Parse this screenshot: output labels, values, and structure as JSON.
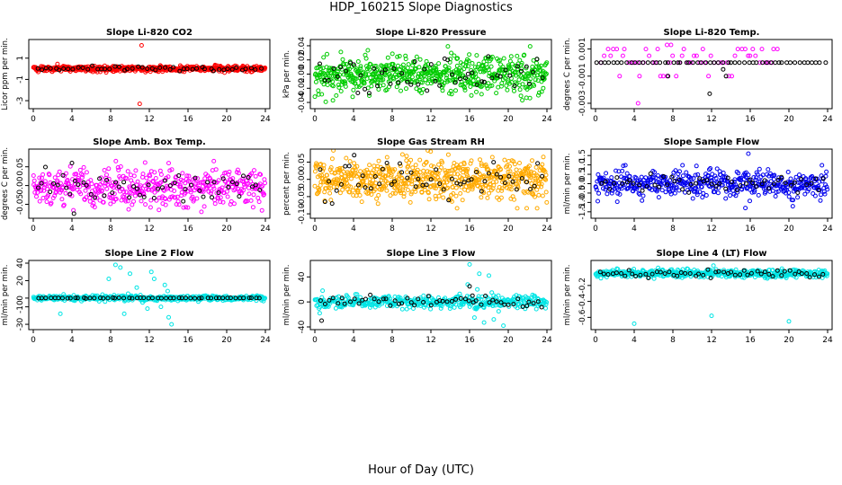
{
  "page": {
    "title": "HDP_160215  Slope Diagnostics",
    "xlabel": "Hour of Day (UTC)"
  },
  "chart_data": [
    {
      "type": "scatter",
      "title": "Slope Li-820 CO2",
      "ylabel": "Licor ppm per min.",
      "xlim": [
        0,
        24
      ],
      "ylim": [
        -3.5,
        2.5
      ],
      "xticks": [
        "0",
        "4",
        "8",
        "12",
        "16",
        "20",
        "24"
      ],
      "yticks": [
        {
          "v": 1,
          "label": "1"
        },
        {
          "v": -1,
          "label": "-1"
        },
        {
          "v": -3,
          "label": "-3"
        }
      ],
      "color": "#ff0000",
      "series": [
        {
          "color_name": "red",
          "color": "#ff0000",
          "count": 520,
          "center": 0,
          "spread": 0.13,
          "x_range": [
            0,
            24
          ],
          "outliers": [
            [
              11.2,
              2.2
            ],
            [
              11.0,
              -3.3
            ],
            [
              2.5,
              0.45
            ],
            [
              18.8,
              0.35
            ]
          ]
        },
        {
          "color_name": "black",
          "color": "#000000",
          "count": 50,
          "center": 0,
          "spread": 0.1,
          "x_range": [
            0.3,
            23.8
          ]
        }
      ]
    },
    {
      "type": "scatter",
      "title": "Slope Li-820 Pressure",
      "ylabel": "kPa per min.",
      "xlim": [
        0,
        24
      ],
      "ylim": [
        -0.045,
        0.045
      ],
      "xticks": [
        "0",
        "4",
        "8",
        "12",
        "16",
        "20",
        "24"
      ],
      "yticks": [
        {
          "v": 0.04,
          "label": "0.04"
        },
        {
          "v": 0.02,
          "label": "0.02"
        },
        {
          "v": 0.0,
          "label": "0.00"
        },
        {
          "v": -0.02,
          "label": "-0.02"
        },
        {
          "v": -0.04,
          "label": "-0.04"
        }
      ],
      "color": "#00cc00",
      "series": [
        {
          "color_name": "green",
          "color": "#00cc00",
          "count": 620,
          "center": 0.0,
          "spread": 0.014,
          "x_range": [
            0,
            24
          ]
        },
        {
          "color_name": "black",
          "color": "#000000",
          "count": 55,
          "center": 0.0,
          "spread": 0.013,
          "x_range": [
            0.5,
            23.8
          ]
        }
      ]
    },
    {
      "type": "scatter",
      "title": "Slope Li-820 Temp.",
      "ylabel": "degrees C per min.",
      "xlim": [
        0,
        24
      ],
      "ylim": [
        -0.0032,
        0.0015
      ],
      "xticks": [
        "0",
        "4",
        "8",
        "12",
        "16",
        "20",
        "24"
      ],
      "yticks": [
        {
          "v": 0.001,
          "label": "0.001"
        },
        {
          "v": -0.001,
          "label": "-0.001"
        },
        {
          "v": -0.003,
          "label": "-0.003"
        }
      ],
      "color": "#ff00ff",
      "series": [
        {
          "color_name": "magenta",
          "color": "#ff00ff",
          "count": 60,
          "center": 0.0,
          "spread": 0.0,
          "x_range": [
            0.5,
            19
          ],
          "levels": [
            0.001,
            0.0005,
            -0.001
          ],
          "outliers": [
            [
              4.4,
              -0.003
            ],
            [
              7.4,
              0.0013
            ],
            [
              7.8,
              0.0013
            ]
          ]
        },
        {
          "color_name": "black",
          "color": "#000000",
          "count": 55,
          "center": 0.0,
          "spread": 0.0,
          "x_range": [
            0,
            24
          ],
          "outliers": [
            [
              11.8,
              -0.0023
            ],
            [
              13.2,
              -0.0005
            ],
            [
              7.5,
              -0.001
            ],
            [
              13.5,
              -0.001
            ]
          ]
        }
      ]
    },
    {
      "type": "scatter",
      "title": "Slope Amb. Box Temp.",
      "ylabel": "degrees C per min.",
      "xlim": [
        0,
        24
      ],
      "ylim": [
        -0.08,
        0.09
      ],
      "xticks": [
        "0",
        "4",
        "8",
        "12",
        "16",
        "20",
        "24"
      ],
      "yticks": [
        {
          "v": 0.05,
          "label": "0.05"
        },
        {
          "v": 0.0,
          "label": "0.00"
        },
        {
          "v": -0.05,
          "label": "-0.05"
        }
      ],
      "color": "#ff00ff",
      "series": [
        {
          "color_name": "magenta",
          "color": "#ff00ff",
          "count": 470,
          "center": -0.005,
          "spread": 0.025,
          "x_range": [
            0,
            24
          ]
        },
        {
          "color_name": "black",
          "color": "#000000",
          "count": 55,
          "center": 0.0,
          "spread": 0.02,
          "x_range": [
            0.3,
            23.8
          ],
          "outliers": [
            [
              4.2,
              -0.075
            ],
            [
              4.0,
              0.06
            ]
          ]
        }
      ]
    },
    {
      "type": "scatter",
      "title": "Slope Gas Stream RH",
      "ylabel": "percent per min.",
      "xlim": [
        0,
        24
      ],
      "ylim": [
        -0.105,
        0.08
      ],
      "xticks": [
        "0",
        "4",
        "8",
        "12",
        "16",
        "20",
        "24"
      ],
      "yticks": [
        {
          "v": 0.05,
          "label": "0.05"
        },
        {
          "v": 0.0,
          "label": "0.00"
        },
        {
          "v": -0.05,
          "label": "-0.05"
        },
        {
          "v": -0.1,
          "label": "-0.10"
        }
      ],
      "color": "#ffaa00",
      "series": [
        {
          "color_name": "orange",
          "color": "#ffaa00",
          "count": 640,
          "center": 0.0,
          "spread": 0.03,
          "x_range": [
            0,
            24
          ]
        },
        {
          "color_name": "black",
          "color": "#000000",
          "count": 55,
          "center": 0.0,
          "spread": 0.025,
          "x_range": [
            0.5,
            23.8
          ]
        }
      ]
    },
    {
      "type": "scatter",
      "title": "Slope Sample Flow",
      "ylabel": "ml/min per min.",
      "xlim": [
        0,
        24
      ],
      "ylim": [
        -1.7,
        1.7
      ],
      "xticks": [
        "0",
        "4",
        "8",
        "12",
        "16",
        "20",
        "24"
      ],
      "yticks": [
        {
          "v": 1.5,
          "label": "1.5"
        },
        {
          "v": 1.0,
          "label": "1.0"
        },
        {
          "v": 0.5,
          "label": "0.5"
        },
        {
          "v": 0.0,
          "label": "0.0"
        },
        {
          "v": -0.5,
          "label": "-0.5"
        },
        {
          "v": -1.0,
          "label": "-1.0"
        },
        {
          "v": -1.5,
          "label": "-1.5"
        }
      ],
      "color": "#0000ee",
      "series": [
        {
          "color_name": "blue",
          "color": "#0000ee",
          "count": 470,
          "center": 0.0,
          "spread": 0.35,
          "x_range": [
            0,
            24
          ],
          "outliers": [
            [
              15.8,
              1.6
            ],
            [
              15.5,
              -1.3
            ],
            [
              20.4,
              -1.2
            ]
          ]
        },
        {
          "color_name": "black",
          "color": "#000000",
          "count": 55,
          "center": 0.05,
          "spread": 0.25,
          "x_range": [
            0.5,
            23.8
          ]
        }
      ]
    },
    {
      "type": "scatter",
      "title": "Slope Line 2 Flow",
      "ylabel": "ml/min per min.",
      "xlim": [
        0,
        24
      ],
      "ylim": [
        -33,
        40
      ],
      "xticks": [
        "0",
        "4",
        "8",
        "12",
        "16",
        "20",
        "24"
      ],
      "yticks": [
        {
          "v": 40,
          "label": "40"
        },
        {
          "v": 20,
          "label": "20"
        },
        {
          "v": 0,
          "label": "0"
        },
        {
          "v": -10,
          "label": "-10"
        },
        {
          "v": -30,
          "label": "-30"
        }
      ],
      "color": "#00e5e5",
      "series": [
        {
          "color_name": "cyan",
          "color": "#00e5e5",
          "count": 460,
          "center": 0,
          "spread": 1.5,
          "x_range": [
            0,
            24
          ],
          "outliers": [
            [
              8.5,
              38
            ],
            [
              9.0,
              35
            ],
            [
              10.0,
              28
            ],
            [
              12.2,
              30
            ],
            [
              12.5,
              22
            ],
            [
              11.8,
              -12
            ],
            [
              13.2,
              -10
            ],
            [
              14.0,
              -22
            ],
            [
              9.4,
              -18
            ],
            [
              2.8,
              -18
            ],
            [
              7.8,
              22
            ],
            [
              13.6,
              15
            ],
            [
              10.7,
              12
            ],
            [
              11.3,
              -5
            ],
            [
              12.8,
              -3
            ],
            [
              13.9,
              8
            ],
            [
              9.8,
              5
            ],
            [
              14.3,
              -30
            ]
          ]
        },
        {
          "color_name": "black",
          "color": "#000000",
          "count": 55,
          "center": 0,
          "spread": 0.2,
          "x_range": [
            0.3,
            23.8
          ]
        }
      ]
    },
    {
      "type": "scatter",
      "title": "Slope Line 3 Flow",
      "ylabel": "ml/min per min.",
      "xlim": [
        0,
        24
      ],
      "ylim": [
        -40,
        62
      ],
      "xticks": [
        "0",
        "4",
        "8",
        "12",
        "16",
        "20",
        "24"
      ],
      "yticks": [
        {
          "v": 40,
          "label": "40"
        },
        {
          "v": 0,
          "label": "0"
        },
        {
          "v": -40,
          "label": "-40"
        }
      ],
      "color": "#00e5e5",
      "series": [
        {
          "color_name": "cyan",
          "color": "#00e5e5",
          "count": 430,
          "center": 0,
          "spread": 5,
          "x_range": [
            0,
            24
          ],
          "outliers": [
            [
              16.0,
              60
            ],
            [
              17.0,
              45
            ],
            [
              18.0,
              42
            ],
            [
              16.5,
              -25
            ],
            [
              17.5,
              -33
            ],
            [
              18.5,
              -28
            ],
            [
              19.5,
              -38
            ],
            [
              15.8,
              28
            ],
            [
              16.8,
              20
            ],
            [
              18.3,
              15
            ],
            [
              19.0,
              -15
            ],
            [
              0.8,
              18
            ],
            [
              0.5,
              -18
            ]
          ]
        },
        {
          "color_name": "black",
          "color": "#000000",
          "count": 55,
          "center": 0,
          "spread": 4,
          "x_range": [
            0.5,
            23.8
          ],
          "outliers": [
            [
              0.7,
              -30
            ],
            [
              16.0,
              25
            ],
            [
              16.3,
              10
            ]
          ]
        }
      ]
    },
    {
      "type": "scatter",
      "title": "Slope Line 4 (LT) Flow",
      "ylabel": "ml/min per min.",
      "xlim": [
        0,
        24
      ],
      "ylim": [
        -0.72,
        0.08
      ],
      "xticks": [
        "0",
        "4",
        "8",
        "12",
        "16",
        "20",
        "24"
      ],
      "yticks": [
        {
          "v": -0.2,
          "label": "-0.2"
        },
        {
          "v": -0.4,
          "label": "-0.4"
        },
        {
          "v": -0.6,
          "label": "-0.6"
        }
      ],
      "color": "#00e5e5",
      "series": [
        {
          "color_name": "cyan",
          "color": "#00e5e5",
          "count": 480,
          "center": -0.05,
          "spread": 0.025,
          "x_range": [
            0,
            24
          ],
          "outliers": [
            [
              4.0,
              -0.68
            ],
            [
              12.0,
              -0.58
            ],
            [
              20.0,
              -0.65
            ],
            [
              12.2,
              0.05
            ]
          ]
        },
        {
          "color_name": "black",
          "color": "#000000",
          "count": 55,
          "center": -0.05,
          "spread": 0.02,
          "x_range": [
            0.3,
            23.8
          ]
        }
      ]
    }
  ]
}
